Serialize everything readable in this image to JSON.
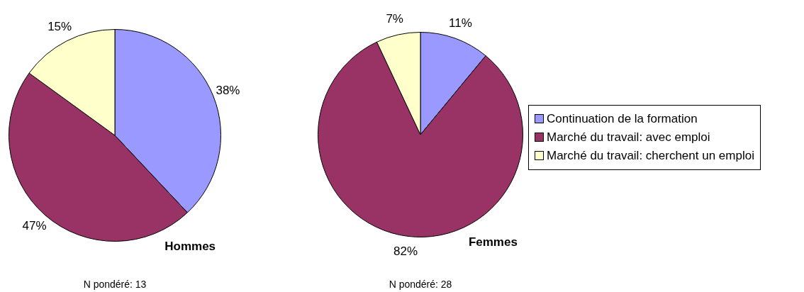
{
  "chart_data": [
    {
      "type": "pie",
      "title": "Hommes",
      "categories": [
        null,
        null,
        null
      ],
      "values": [
        38,
        47,
        15
      ],
      "colors": [
        "#9999ff",
        "#993366",
        "#ffffcc"
      ],
      "value_labels": [
        "38%",
        "47%",
        "15%"
      ],
      "annotations": [
        "N pondéré: 13"
      ],
      "legend": false
    },
    {
      "type": "pie",
      "title": "Femmes",
      "categories": [
        "Continuation de la formation",
        "Marché du travail: avec emploi",
        "Marché du travail: cherchent un emploi"
      ],
      "values": [
        11,
        82,
        7
      ],
      "colors": [
        "#9999ff",
        "#993366",
        "#ffffcc"
      ],
      "value_labels": [
        "11%",
        "82%",
        "7%"
      ],
      "annotations": [
        "N pondéré: 28"
      ],
      "legend": "right"
    }
  ]
}
